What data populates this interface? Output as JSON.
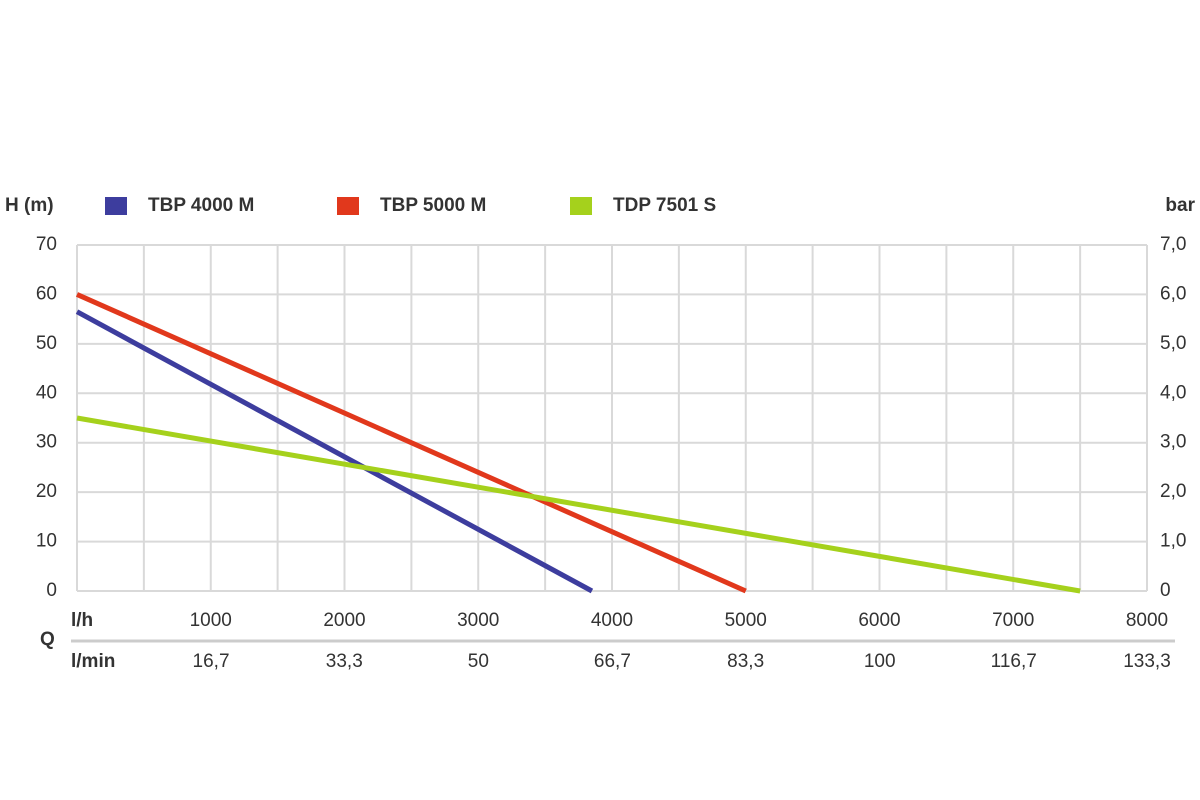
{
  "chart_data": {
    "type": "line",
    "y_label": "H (m)",
    "y2_label": "bar",
    "x_label": "l/h",
    "x2_label": "l/min",
    "x_group_label": "Q",
    "xlim": [
      0,
      8000
    ],
    "xticks": [
      1000,
      2000,
      3000,
      4000,
      5000,
      6000,
      7000,
      8000
    ],
    "xminorticks": [
      500,
      1500,
      2500,
      3500,
      4500,
      5500,
      6500,
      7500
    ],
    "x2lim": [
      0,
      133.3
    ],
    "x2ticks": [
      {
        "value": 16.7,
        "label": "16,7"
      },
      {
        "value": 33.3,
        "label": "33,3"
      },
      50,
      {
        "value": 66.7,
        "label": "66,7"
      },
      {
        "value": 83.3,
        "label": "83,3"
      },
      100,
      {
        "value": 116.7,
        "label": "116,7"
      },
      {
        "value": 133.3,
        "label": "133,3"
      }
    ],
    "ylim": [
      0,
      70
    ],
    "yticks": [
      0,
      10,
      20,
      30,
      40,
      50,
      60,
      70
    ],
    "y2lim": [
      0,
      7
    ],
    "y2ticks": [
      0,
      {
        "value": 1,
        "label": "1,0"
      },
      {
        "value": 2,
        "label": "2,0"
      },
      {
        "value": 3,
        "label": "3,0"
      },
      {
        "value": 4,
        "label": "4,0"
      },
      {
        "value": 5,
        "label": "5,0"
      },
      {
        "value": 6,
        "label": "6,0"
      },
      {
        "value": 7,
        "label": "7,0"
      }
    ],
    "grid": true,
    "series": [
      {
        "name": "TBP 4000 M",
        "color": "#3d3d9e",
        "x": [
          0,
          3850
        ],
        "values": [
          56.5,
          0
        ]
      },
      {
        "name": "TBP 5000 M",
        "color": "#e1381c",
        "x": [
          0,
          5000
        ],
        "values": [
          60,
          0
        ]
      },
      {
        "name": "TDP 7501 S",
        "color": "#a5d11c",
        "x": [
          0,
          7500
        ],
        "values": [
          35,
          0
        ]
      }
    ]
  }
}
